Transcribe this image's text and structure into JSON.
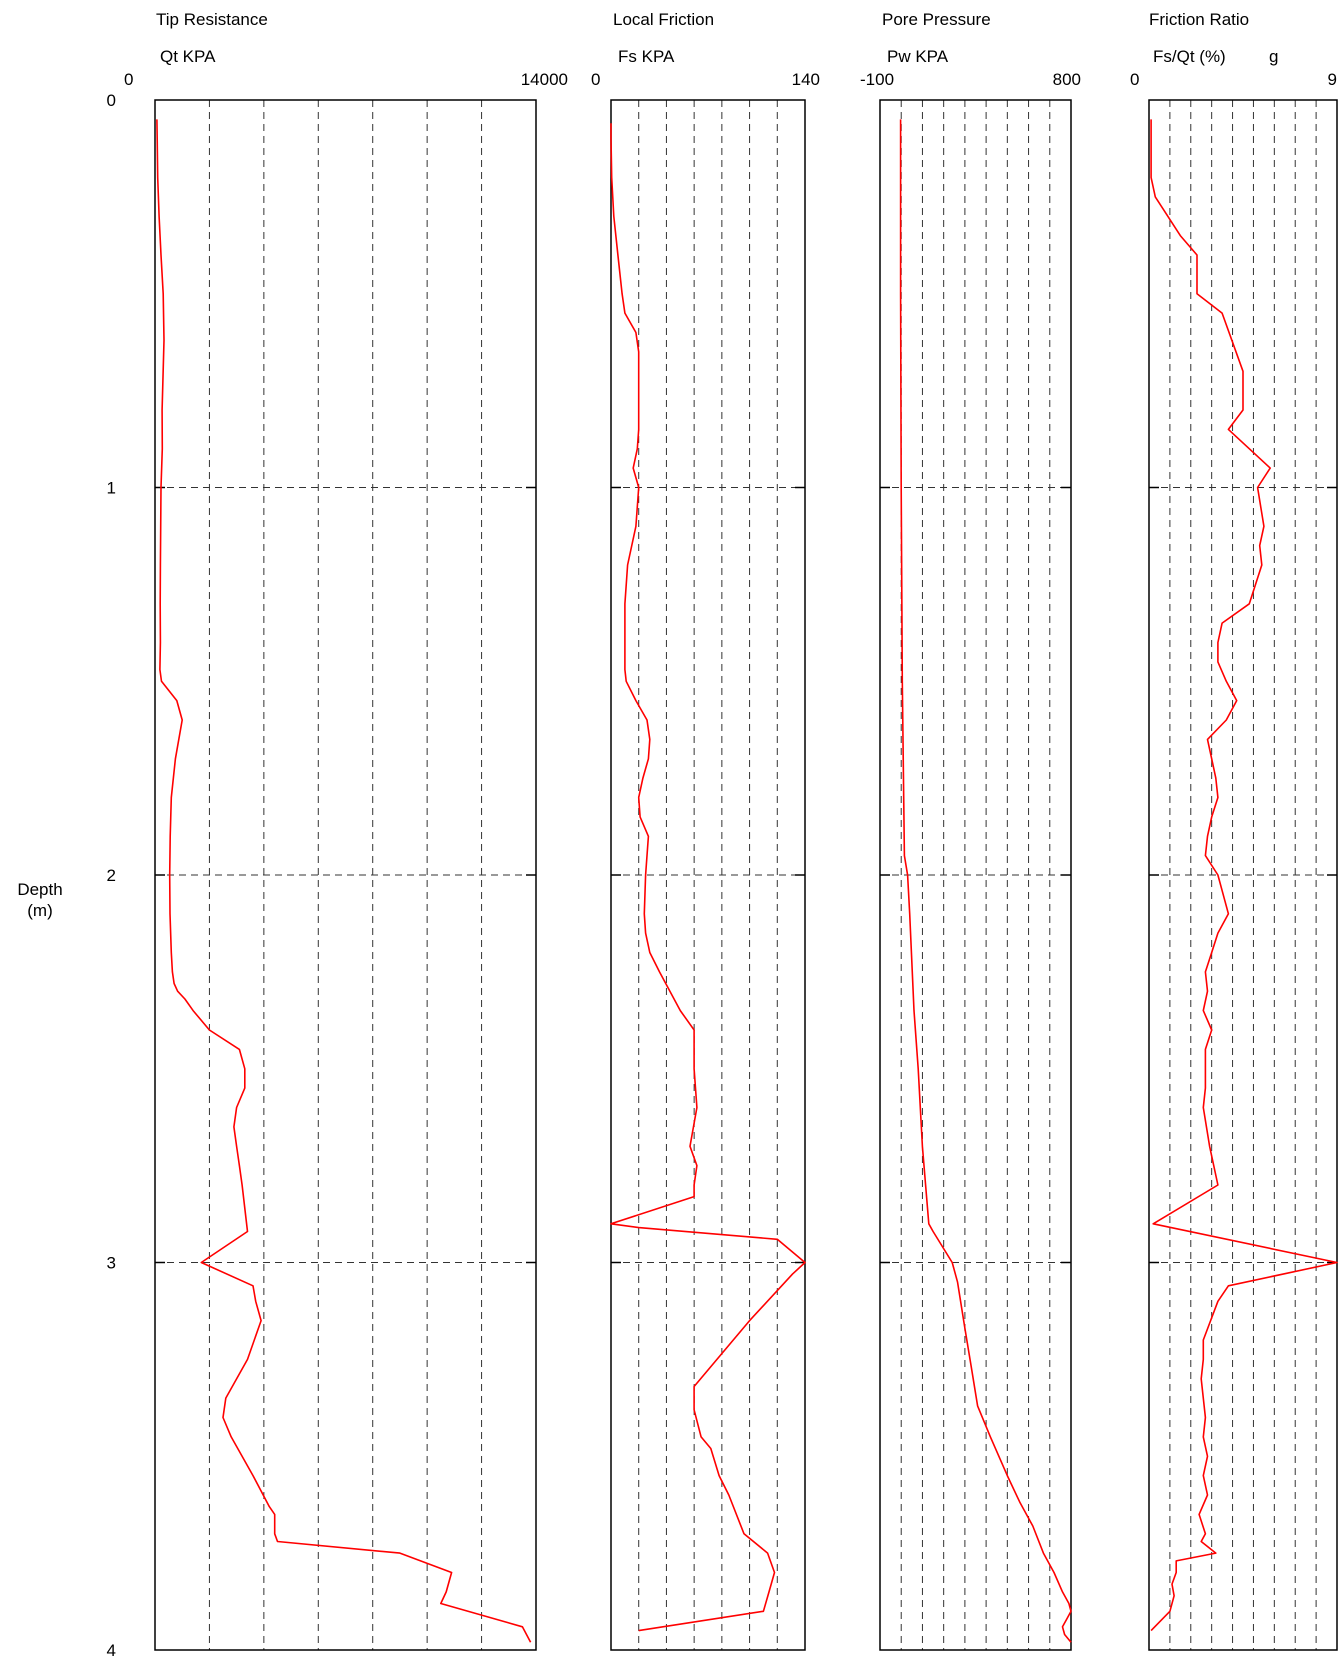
{
  "chart_data": {
    "type": "line",
    "depth_axis": {
      "label_line1": "Depth",
      "label_line2": "(m)",
      "ylim": [
        0,
        4
      ],
      "ticks": [
        0,
        1,
        2,
        3,
        4
      ],
      "tick_labels": [
        "0",
        "1",
        "2",
        "3",
        "4"
      ],
      "inverted": true,
      "gridlines": true
    },
    "panels": [
      {
        "title": "Tip Resistance",
        "xlabel": "Qt KPA",
        "xlim": [
          0,
          14000
        ],
        "xmin_label": "0",
        "xmax_label": "14000",
        "vgrid_count": 7,
        "color": "#ff0000",
        "x": [
          70,
          80,
          100,
          150,
          220,
          300,
          330,
          260,
          270,
          220,
          200,
          190,
          200,
          180,
          240,
          800,
          1000,
          750,
          600,
          560,
          540,
          550,
          600,
          640,
          700,
          830,
          1100,
          1400,
          2000,
          3100,
          3300,
          3300,
          3000,
          2900,
          3000,
          3100,
          3200,
          3400,
          1700,
          3600,
          3700,
          3900,
          3400,
          2600,
          2500,
          2800,
          3600,
          4200,
          4400,
          4400,
          4500,
          9000,
          10900,
          10700,
          10500,
          13500,
          13800
        ],
        "y": [
          0.05,
          0.1,
          0.2,
          0.3,
          0.4,
          0.5,
          0.62,
          0.8,
          0.9,
          1.0,
          1.2,
          1.3,
          1.4,
          1.47,
          1.5,
          1.55,
          1.6,
          1.7,
          1.8,
          1.9,
          2.0,
          2.1,
          2.2,
          2.25,
          2.28,
          2.3,
          2.32,
          2.35,
          2.4,
          2.45,
          2.5,
          2.55,
          2.6,
          2.65,
          2.7,
          2.75,
          2.8,
          2.92,
          3.0,
          3.06,
          3.1,
          3.15,
          3.25,
          3.35,
          3.4,
          3.45,
          3.55,
          3.63,
          3.65,
          3.7,
          3.72,
          3.75,
          3.8,
          3.85,
          3.88,
          3.94,
          3.98
        ]
      },
      {
        "title": "Local Friction",
        "xlabel": "Fs KPA",
        "xlim": [
          0,
          140
        ],
        "xmin_label": "0",
        "xmax_label": "140",
        "vgrid_count": 7,
        "color": "#ff0000",
        "x": [
          0,
          0,
          0.5,
          2,
          5,
          8,
          10,
          18,
          20,
          20,
          19,
          16,
          20,
          18,
          12,
          10,
          10,
          10,
          10,
          11,
          18,
          26,
          28,
          27,
          23,
          20,
          21,
          27,
          25,
          24,
          25,
          28,
          35,
          50,
          60,
          60,
          62,
          57,
          62,
          60,
          60,
          0,
          20,
          120,
          140,
          131,
          100,
          60,
          60,
          65,
          72,
          78,
          85,
          96,
          113,
          118,
          114,
          110,
          20
        ],
        "y": [
          0.06,
          0.1,
          0.2,
          0.3,
          0.4,
          0.5,
          0.55,
          0.6,
          0.65,
          0.85,
          0.9,
          0.95,
          1.0,
          1.1,
          1.2,
          1.3,
          1.4,
          1.45,
          1.47,
          1.5,
          1.55,
          1.6,
          1.65,
          1.7,
          1.75,
          1.8,
          1.85,
          1.9,
          2.0,
          2.1,
          2.15,
          2.2,
          2.25,
          2.35,
          2.4,
          2.5,
          2.6,
          2.7,
          2.75,
          2.8,
          2.83,
          2.9,
          2.91,
          2.94,
          3.0,
          3.03,
          3.15,
          3.32,
          3.38,
          3.45,
          3.48,
          3.55,
          3.6,
          3.7,
          3.75,
          3.8,
          3.85,
          3.9,
          3.95
        ]
      },
      {
        "title": "Pore Pressure",
        "xlabel": "Pw KPA",
        "xlim": [
          -100,
          800
        ],
        "xmin_label": "-100",
        "xmax_label": "800",
        "vgrid_count": 9,
        "color": "#ff0000",
        "x": [
          -3,
          -3,
          0,
          5,
          15,
          30,
          40,
          60,
          80,
          100,
          130,
          150,
          240,
          265,
          300,
          330,
          360,
          420,
          500,
          560,
          620,
          670,
          720,
          760,
          790,
          800,
          780,
          760,
          770,
          800
        ],
        "y": [
          0.05,
          0.5,
          1.0,
          1.5,
          1.95,
          2.0,
          2.1,
          2.35,
          2.5,
          2.7,
          2.9,
          2.92,
          3.0,
          3.05,
          3.17,
          3.27,
          3.37,
          3.45,
          3.55,
          3.62,
          3.68,
          3.75,
          3.8,
          3.85,
          3.88,
          3.9,
          3.92,
          3.94,
          3.96,
          3.98
        ]
      },
      {
        "title": "Friction Ratio",
        "xlabel": "Fs/Qt (%)",
        "xlabel_extra": "g",
        "xlim": [
          0,
          9
        ],
        "xmin_label": "0",
        "xmax_label": "9",
        "vgrid_count": 9,
        "color": "#ff0000",
        "x": [
          0.1,
          0.1,
          0.1,
          0.3,
          1.5,
          2.3,
          2.3,
          3.5,
          4.5,
          4.5,
          3.8,
          5.8,
          5.2,
          5.5,
          5.3,
          5.4,
          4.8,
          3.5,
          3.3,
          3.3,
          3.7,
          4.2,
          3.7,
          2.8,
          3.0,
          3.2,
          3.3,
          3.0,
          2.8,
          2.7,
          3.3,
          3.8,
          3.3,
          3.0,
          2.7,
          2.8,
          2.6,
          3.0,
          2.7,
          2.7,
          2.6,
          2.9,
          3.3,
          0.2,
          9.0,
          3.8,
          3.3,
          2.6,
          2.6,
          2.5,
          2.7,
          2.6,
          2.8,
          2.6,
          2.8,
          2.4,
          2.7,
          2.5,
          3.2,
          1.3,
          1.3,
          1.1,
          1.2,
          1.0,
          0.1
        ],
        "y": [
          0.05,
          0.1,
          0.2,
          0.25,
          0.35,
          0.4,
          0.5,
          0.55,
          0.7,
          0.8,
          0.85,
          0.95,
          1.0,
          1.1,
          1.15,
          1.2,
          1.3,
          1.35,
          1.4,
          1.45,
          1.5,
          1.55,
          1.6,
          1.65,
          1.7,
          1.75,
          1.8,
          1.85,
          1.9,
          1.95,
          2.0,
          2.1,
          2.15,
          2.2,
          2.25,
          2.3,
          2.35,
          2.4,
          2.45,
          2.55,
          2.6,
          2.7,
          2.8,
          2.9,
          3.0,
          3.06,
          3.1,
          3.2,
          3.25,
          3.3,
          3.4,
          3.45,
          3.5,
          3.55,
          3.6,
          3.65,
          3.7,
          3.72,
          3.75,
          3.77,
          3.8,
          3.83,
          3.86,
          3.9,
          3.95
        ]
      }
    ]
  }
}
